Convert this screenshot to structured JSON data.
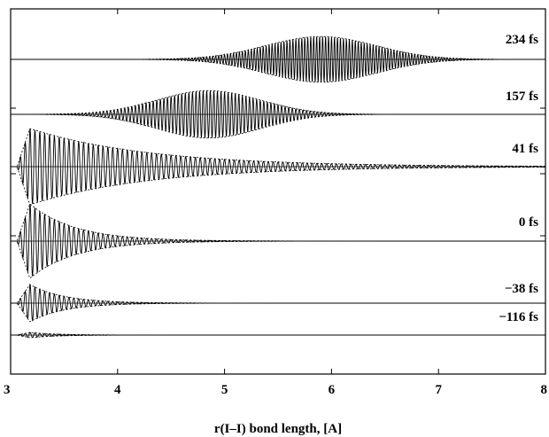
{
  "chart_data": {
    "type": "line",
    "title": "",
    "xlabel": "r(I–I) bond length, [A]",
    "ylabel": "",
    "xlim": [
      3,
      8
    ],
    "x_ticks": [
      "3",
      "4",
      "5",
      "6",
      "7",
      "8"
    ],
    "grid": false,
    "legend": "none",
    "series": [
      {
        "name": "234 fs",
        "shape": "gaussian",
        "center": 5.9,
        "width": 0.72,
        "amplitude": 0.92,
        "frequency": 36
      },
      {
        "name": "157 fs",
        "shape": "gaussian",
        "center": 4.85,
        "width": 0.68,
        "amplitude": 0.92,
        "frequency": 30
      },
      {
        "name": "41 fs",
        "shape": "onset-decay",
        "onset": 3.18,
        "decay": 1.1,
        "amplitude": 1.0,
        "frequency": 22
      },
      {
        "name": "0 fs",
        "shape": "onset-decay",
        "onset": 3.18,
        "decay": 0.42,
        "amplitude": 1.0,
        "frequency": 22
      },
      {
        "name": "−38 fs",
        "shape": "onset-decay",
        "onset": 3.18,
        "decay": 0.32,
        "amplitude": 0.7,
        "frequency": 22
      },
      {
        "name": "−116 fs",
        "shape": "onset-decay",
        "onset": 3.18,
        "decay": 0.25,
        "amplitude": 0.3,
        "frequency": 22
      }
    ]
  }
}
